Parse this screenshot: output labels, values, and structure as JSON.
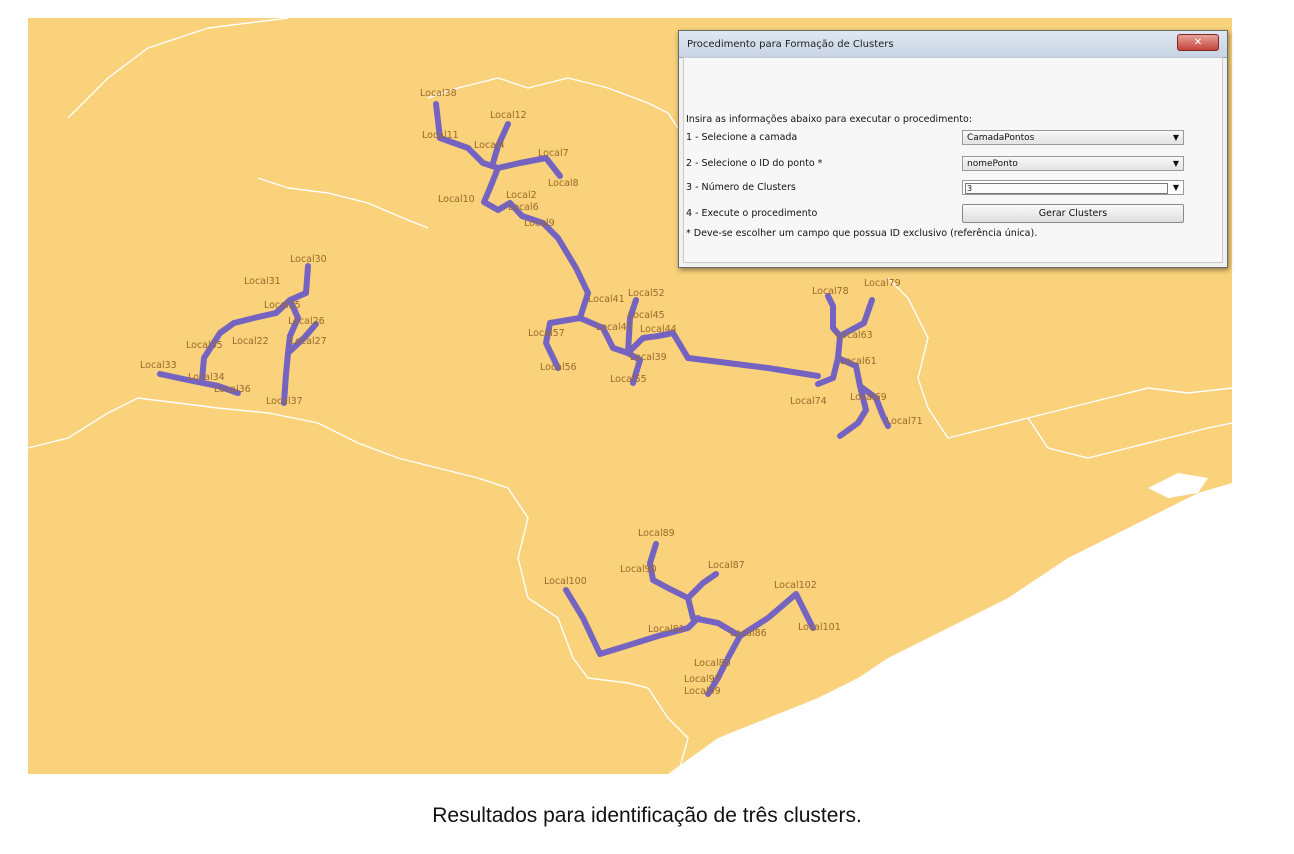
{
  "dialog": {
    "title": "Procedimento para Formação de Clusters",
    "close_label": "✕",
    "instructions": "Insira as informações abaixo para executar o procedimento:",
    "step1_label": "1 - Selecione a camada",
    "step1_value": "CamadaPontos",
    "step2_label": "2 - Selecione o ID do ponto *",
    "step2_value": "nomePonto",
    "step3_label": "3 - Número de Clusters",
    "step3_value": "3",
    "step4_label": "4 - Execute o procedimento",
    "button_label": "Gerar Clusters",
    "footnote": "* Deve-se escolher um campo que possua ID exclusivo (referência única)."
  },
  "caption": "Resultados para identificação de três clusters.",
  "colors": {
    "land": "#f9d27b",
    "sea": "#ffffff",
    "edge": "#6a5ac7",
    "label": "#9a6a2a",
    "border": "#ffffff"
  },
  "map_labels": [
    "Local38",
    "Local12",
    "Local11",
    "Local4",
    "Local7",
    "Local8",
    "Local2",
    "Local6",
    "Local9",
    "Local10",
    "Local30",
    "Local31",
    "Local35",
    "Local26",
    "Local27",
    "Local25",
    "Local22",
    "Local33",
    "Local34",
    "Local36",
    "Local37",
    "Local52",
    "Local41",
    "Local45",
    "Local47",
    "Local44",
    "Local57",
    "Local39",
    "Local56",
    "Local55",
    "Local78",
    "Local79",
    "Local63",
    "Local61",
    "Local74",
    "Local69",
    "Local71",
    "Local89",
    "Local87",
    "Local90",
    "Local100",
    "Local102",
    "Local101",
    "Local81",
    "Local86",
    "Local80",
    "Local97",
    "Local99"
  ]
}
